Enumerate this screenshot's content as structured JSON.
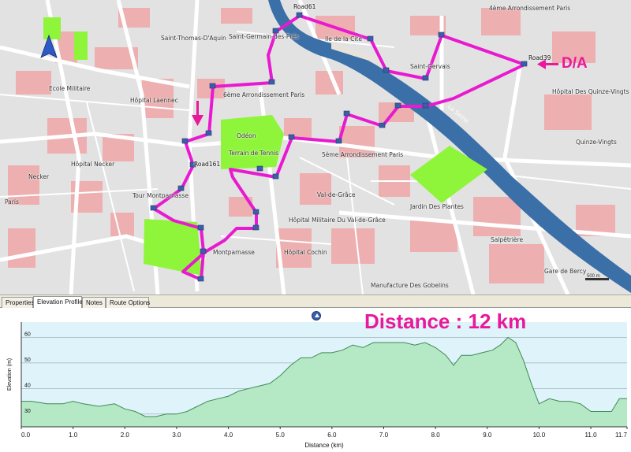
{
  "map": {
    "district_labels": [
      "6ème Arrondissement Paris",
      "5ème Arrondissement Paris",
      "4ème Arrondissement Paris",
      "Odéon",
      "Val-de-Grâce",
      "Jardin Des Plantes",
      "Hôpital Necker",
      "Hôpital Laennec",
      "Ecole Militaire",
      "Tour Montparnasse",
      "Montparnasse",
      "Hôpital Cochin",
      "Manufacture Des Gobelins",
      "Hôpital Des Quinze-Vingts",
      "Necker",
      "Terrain de Tennis",
      "Gare de Bercy",
      "Salpêtrière",
      "Hôpital Militaire Du Val-de-Grâce",
      "Quinze-Vingts",
      "Paris",
      "Saint-Thomas-D'Aquin",
      "Saint-Germain-des-Prés",
      "Ile de la Cité",
      "La Seine",
      "Saint-Gervais"
    ],
    "road_labels": [
      "Road61",
      "Road39",
      "Road161"
    ],
    "start_finish_label": "D/A",
    "scale_label": "500 m",
    "colors": {
      "route": "#e81ad0",
      "start_marker": "#e8199b",
      "park": "#8ff53a",
      "water": "#3a6fa8",
      "building": "#f2a3a3"
    }
  },
  "tabs": [
    {
      "label": "Properties",
      "active": false
    },
    {
      "label": "Elevation Profile",
      "active": true
    },
    {
      "label": "Notes",
      "active": false
    },
    {
      "label": "Route Options",
      "active": false
    }
  ],
  "profile": {
    "caption": "Distance : 12 km",
    "collapse_icon": "collapse-up-icon"
  },
  "chart_data": {
    "type": "area",
    "title": "",
    "xlabel": "Distance  (km)",
    "ylabel": "Elevation (m)",
    "xlim": [
      0,
      11.7
    ],
    "ylim": [
      25,
      66
    ],
    "x_ticks": [
      0.0,
      1.0,
      2.0,
      3.0,
      4.0,
      5.0,
      6.0,
      7.0,
      8.0,
      9.0,
      10.0,
      11.0,
      11.7
    ],
    "x_tick_labels": [
      "0.0",
      "1.0",
      "2.0",
      "3.0",
      "4.0",
      "5.0",
      "6.0",
      "7.0",
      "8.0",
      "9.0",
      "10.0",
      "11.0",
      "11.7"
    ],
    "y_ticks": [
      30,
      40,
      50,
      60
    ],
    "y_tick_labels": [
      "30",
      "40",
      "50",
      "60"
    ],
    "grid": true,
    "series": [
      {
        "color": "#b5e8c4",
        "x": [
          0.0,
          0.2,
          0.5,
          0.8,
          1.0,
          1.2,
          1.5,
          1.8,
          2.0,
          2.2,
          2.4,
          2.6,
          2.8,
          3.0,
          3.2,
          3.4,
          3.6,
          3.8,
          4.0,
          4.2,
          4.4,
          4.6,
          4.8,
          5.0,
          5.2,
          5.4,
          5.6,
          5.8,
          6.0,
          6.2,
          6.4,
          6.6,
          6.8,
          7.0,
          7.2,
          7.4,
          7.6,
          7.8,
          8.0,
          8.2,
          8.35,
          8.5,
          8.7,
          8.9,
          9.1,
          9.25,
          9.4,
          9.55,
          9.7,
          9.85,
          10.0,
          10.2,
          10.4,
          10.6,
          10.8,
          11.0,
          11.2,
          11.4,
          11.55,
          11.7
        ],
        "y": [
          35,
          35,
          34,
          34,
          35,
          34,
          33,
          34,
          32,
          31,
          29,
          29,
          30,
          30,
          31,
          33,
          35,
          36,
          37,
          39,
          40,
          41,
          42,
          45,
          49,
          52,
          52,
          54,
          54,
          55,
          57,
          56,
          58,
          58,
          58,
          58,
          57,
          58,
          56,
          53,
          49,
          53,
          53,
          54,
          55,
          57,
          60,
          58,
          51,
          42,
          34,
          36,
          35,
          35,
          34,
          31,
          31,
          31,
          36,
          36
        ]
      }
    ]
  }
}
